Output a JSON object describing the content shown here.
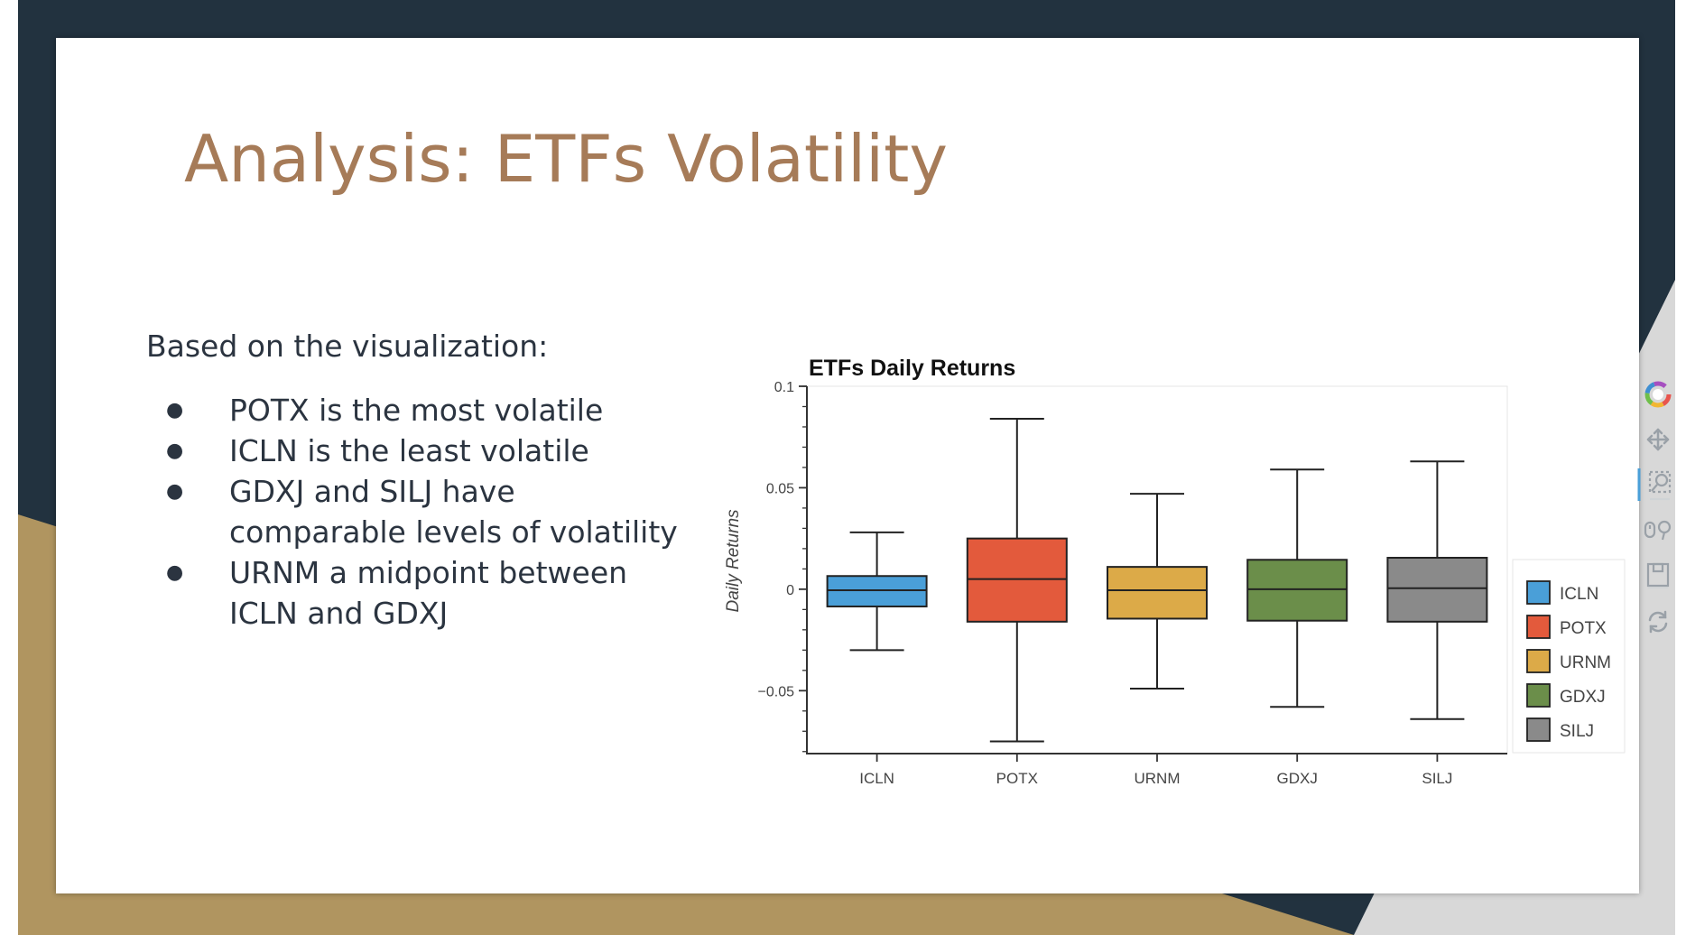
{
  "slide": {
    "title": "Analysis: ETFs Volatility",
    "intro": "Based on the visualization:",
    "bullets": [
      "POTX is the most volatile",
      "ICLN is the least volatile",
      "GDXJ and SILJ have comparable levels of volatility",
      "URNM a midpoint between ICLN and GDXJ"
    ]
  },
  "colors": {
    "navy": "#22323f",
    "gold": "#b09560",
    "title": "#a67b58",
    "text": "#2b3440"
  },
  "toolbar": {
    "icons": [
      "bokeh-logo-icon",
      "pan-icon",
      "box-zoom-icon",
      "wheel-zoom-icon",
      "save-icon",
      "reset-icon"
    ]
  },
  "chart_data": {
    "type": "box",
    "title": "ETFs Daily Returns",
    "xlabel": "",
    "ylabel": "Daily Returns",
    "ylim": [
      -0.081,
      0.1
    ],
    "yticks": [
      {
        "value": 0.1,
        "label": "0.1"
      },
      {
        "value": 0.05,
        "label": "0.05"
      },
      {
        "value": 0,
        "label": "0"
      },
      {
        "value": -0.05,
        "label": "−0.05"
      }
    ],
    "categories": [
      "ICLN",
      "POTX",
      "URNM",
      "GDXJ",
      "SILJ"
    ],
    "legend_position": "right",
    "boxes": [
      {
        "name": "ICLN",
        "color": "#4a9fd8",
        "whisker_high": 0.028,
        "q3": 0.0065,
        "median": -0.0005,
        "q1": -0.0085,
        "whisker_low": -0.03
      },
      {
        "name": "POTX",
        "color": "#e35a3c",
        "whisker_high": 0.084,
        "q3": 0.025,
        "median": 0.005,
        "q1": -0.016,
        "whisker_low": -0.075
      },
      {
        "name": "URNM",
        "color": "#dcaa48",
        "whisker_high": 0.047,
        "q3": 0.011,
        "median": -0.0005,
        "q1": -0.0145,
        "whisker_low": -0.049
      },
      {
        "name": "GDXJ",
        "color": "#6b8e4a",
        "whisker_high": 0.059,
        "q3": 0.0145,
        "median": 0.0,
        "q1": -0.0155,
        "whisker_low": -0.058
      },
      {
        "name": "SILJ",
        "color": "#8a8a8a",
        "whisker_high": 0.063,
        "q3": 0.0155,
        "median": 0.0005,
        "q1": -0.016,
        "whisker_low": -0.064
      }
    ]
  }
}
